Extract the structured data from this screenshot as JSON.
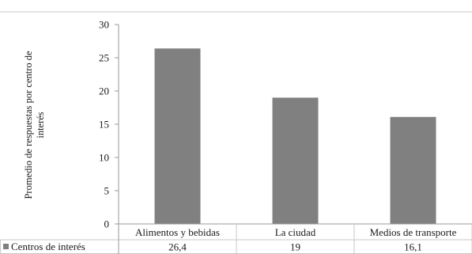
{
  "chart_data": {
    "type": "bar",
    "ylabel_lines": [
      "Promedio de respuestas por centro de",
      "interés"
    ],
    "ylim": [
      0,
      30
    ],
    "yticks": [
      0,
      5,
      10,
      15,
      20,
      25,
      30
    ],
    "grid": false,
    "categories": [
      "Alimentos y bebidas",
      "La ciudad",
      "Medios de transporte"
    ],
    "series": [
      {
        "name": "Centros de interés",
        "values": [
          26.4,
          19,
          16.1
        ],
        "value_labels": [
          "26,4",
          "19",
          "16,1"
        ]
      }
    ],
    "legend_position": "data-table-left",
    "colors": {
      "bar": "#808080",
      "axis": "#9a9a9a",
      "frame": "#c8c8c8"
    }
  }
}
